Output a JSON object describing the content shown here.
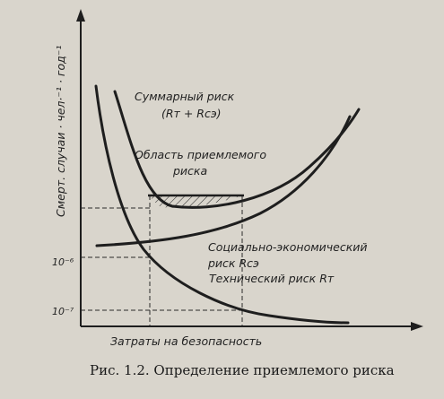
{
  "chart_data": {
    "type": "line",
    "ylabel": "Смерт. случаи · чел·⁻¹ · год⁻¹",
    "xlabel": "Затраты на безопасность",
    "y_ticks": [
      {
        "label": "10⁻⁶",
        "value": 1e-06
      },
      {
        "label": "10⁻⁷",
        "value": 1e-07
      }
    ],
    "series": [
      {
        "name": "Суммарный риск (Rт + Rсэ)",
        "shape": "U-shaped, falls from high then rises"
      },
      {
        "name": "Социально-экономический риск Rсэ",
        "shape": "nearly flat at low cost, rising with cost"
      },
      {
        "name": "Технический риск Rт",
        "shape": "decreasing with cost"
      }
    ],
    "annotations": {
      "total_line1": "Суммарный риск",
      "total_line2": "(Rт + Rсэ)",
      "region_line1": "Область приемлемого",
      "region_line2": "риска",
      "socio_line1": "Социально-экономический",
      "socio_line2": "риск Rсэ",
      "tech": "Технический риск Rт"
    },
    "caption": "Рис. 1.2. Определение приемлемого риска",
    "colors": {
      "background": "#d9d5cc",
      "ink": "#1e1e1e"
    }
  }
}
